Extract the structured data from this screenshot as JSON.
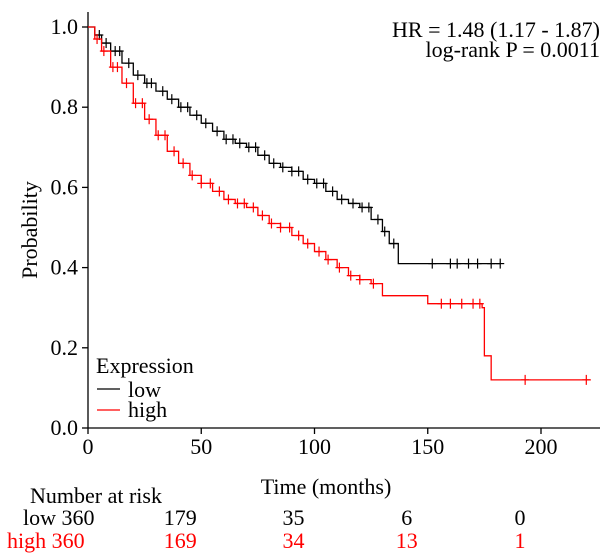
{
  "chart_data": {
    "type": "line",
    "chart_kind": "kaplan-meier survival",
    "xlabel": "Time (months)",
    "ylabel": "Probability",
    "xlim": [
      0,
      225
    ],
    "ylim": [
      0,
      1.02
    ],
    "xticks": [
      0,
      50,
      100,
      150,
      200
    ],
    "yticks": [
      0.0,
      0.2,
      0.4,
      0.6,
      0.8,
      1.0
    ],
    "ytick_labels": [
      "0.0",
      "0.2",
      "0.4",
      "0.6",
      "0.8",
      "1.0"
    ],
    "grid": false,
    "annotation": {
      "hr": "HR = 1.48 (1.17 - 1.87)",
      "logrank": "log-rank P = 0.0011"
    },
    "legend": {
      "title": "Expression",
      "position": "bottom-left",
      "entries": [
        "low",
        "high"
      ]
    },
    "series": [
      {
        "name": "low",
        "color": "#000000",
        "steps": [
          [
            0,
            1.0
          ],
          [
            3,
            0.98
          ],
          [
            6,
            0.96
          ],
          [
            10,
            0.94
          ],
          [
            15,
            0.91
          ],
          [
            20,
            0.88
          ],
          [
            25,
            0.86
          ],
          [
            30,
            0.84
          ],
          [
            35,
            0.82
          ],
          [
            40,
            0.8
          ],
          [
            45,
            0.78
          ],
          [
            50,
            0.76
          ],
          [
            55,
            0.74
          ],
          [
            60,
            0.72
          ],
          [
            65,
            0.71
          ],
          [
            70,
            0.7
          ],
          [
            75,
            0.68
          ],
          [
            80,
            0.66
          ],
          [
            85,
            0.65
          ],
          [
            90,
            0.64
          ],
          [
            95,
            0.62
          ],
          [
            100,
            0.61
          ],
          [
            105,
            0.59
          ],
          [
            110,
            0.57
          ],
          [
            115,
            0.56
          ],
          [
            120,
            0.55
          ],
          [
            125,
            0.52
          ],
          [
            130,
            0.49
          ],
          [
            133,
            0.46
          ],
          [
            137,
            0.41
          ],
          [
            182,
            0.41
          ]
        ],
        "censor_times": [
          5,
          8,
          12,
          14,
          18,
          22,
          26,
          28,
          33,
          37,
          41,
          44,
          48,
          52,
          57,
          61,
          64,
          67,
          71,
          74,
          78,
          82,
          86,
          90,
          93,
          97,
          101,
          104,
          108,
          112,
          117,
          121,
          124,
          128,
          131,
          135,
          152,
          160,
          163,
          168,
          172,
          178,
          182
        ]
      },
      {
        "name": "high",
        "color": "#ff0000",
        "steps": [
          [
            0,
            1.0
          ],
          [
            3,
            0.97
          ],
          [
            6,
            0.94
          ],
          [
            10,
            0.9
          ],
          [
            15,
            0.86
          ],
          [
            20,
            0.81
          ],
          [
            25,
            0.77
          ],
          [
            30,
            0.73
          ],
          [
            35,
            0.69
          ],
          [
            40,
            0.66
          ],
          [
            45,
            0.63
          ],
          [
            50,
            0.61
          ],
          [
            55,
            0.59
          ],
          [
            60,
            0.57
          ],
          [
            65,
            0.56
          ],
          [
            70,
            0.55
          ],
          [
            75,
            0.53
          ],
          [
            80,
            0.51
          ],
          [
            85,
            0.5
          ],
          [
            90,
            0.48
          ],
          [
            95,
            0.46
          ],
          [
            100,
            0.44
          ],
          [
            105,
            0.42
          ],
          [
            110,
            0.4
          ],
          [
            115,
            0.38
          ],
          [
            120,
            0.37
          ],
          [
            125,
            0.36
          ],
          [
            130,
            0.33
          ],
          [
            150,
            0.31
          ],
          [
            174,
            0.3
          ],
          [
            175,
            0.18
          ],
          [
            178,
            0.12
          ],
          [
            222,
            0.12
          ]
        ],
        "censor_times": [
          4,
          7,
          11,
          13,
          17,
          21,
          24,
          27,
          31,
          34,
          38,
          42,
          46,
          50,
          54,
          58,
          62,
          66,
          69,
          73,
          77,
          81,
          85,
          89,
          93,
          97,
          102,
          106,
          111,
          116,
          120,
          126,
          156,
          160,
          165,
          170,
          173,
          193,
          220
        ]
      }
    ],
    "risk_table": {
      "title": "Number at risk",
      "times": [
        0,
        50,
        100,
        150,
        200
      ],
      "rows": [
        {
          "name": "low",
          "color": "#000000",
          "label": "low 360",
          "counts": [
            "179",
            "35",
            "6",
            "0"
          ]
        },
        {
          "name": "high",
          "color": "#ff0000",
          "label": "high 360",
          "counts": [
            "169",
            "34",
            "13",
            "1"
          ]
        }
      ]
    }
  }
}
